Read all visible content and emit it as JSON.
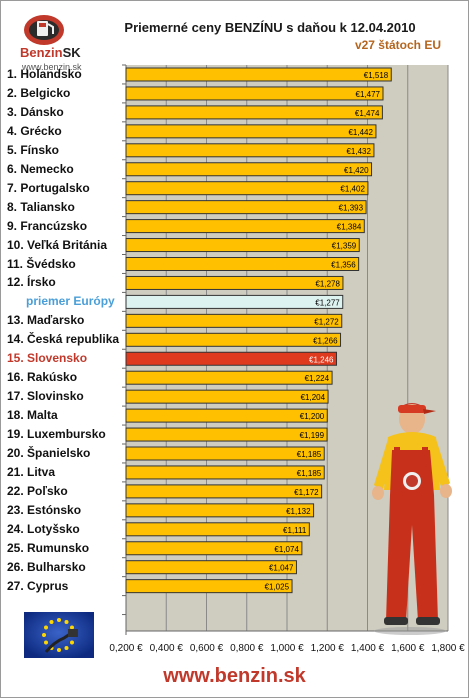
{
  "logo": {
    "brand_main": "Benzin",
    "brand_suffix": "SK",
    "url": "www.benzin.sk"
  },
  "header": {
    "title": "Priemerné ceny BENZÍNU s daňou k 12.04.2010",
    "subtitle": "v27 štátoch EU"
  },
  "footer": {
    "url": "www.benzin.sk"
  },
  "colors": {
    "bar": "#FFC000",
    "average_bar": "#DDF3F0",
    "highlight_bar": "#E03A1E",
    "plot_background": "#CFCCC0",
    "highlight_text": "#C0392B",
    "average_text": "#4A9FD8"
  },
  "chart_data": {
    "type": "bar",
    "orientation": "horizontal",
    "title": "Priemerné ceny BENZÍNU s daňou k 12.04.2010",
    "subtitle": "v27 štátoch EU",
    "xlim": [
      0.2,
      1.8
    ],
    "x_ticks": [
      "0,200 €",
      "0,400 €",
      "0,600 €",
      "0,800 €",
      "1,000 €",
      "1,200 €",
      "1,400 €",
      "1,600 €",
      "1,800 €"
    ],
    "x_tick_values": [
      0.2,
      0.4,
      0.6,
      0.8,
      1.0,
      1.2,
      1.4,
      1.6,
      1.8
    ],
    "grid": "vertical",
    "categories": [
      "1. Holandsko",
      "2. Belgicko",
      "3. Dánsko",
      "4. Grécko",
      "5. Fínsko",
      "6. Nemecko",
      "7. Portugalsko",
      "8. Taliansko",
      "9. Francúzsko",
      "10. Veľká Británia",
      "11. Švédsko",
      "12. Írsko",
      "priemer Európy",
      "13. Maďarsko",
      "14. Česká republika",
      "15. Slovensko",
      "16. Rakúsko",
      "17. Slovinsko",
      "18. Malta",
      "19. Luxembursko",
      "20. Španielsko",
      "21. Litva",
      "22. Poľsko",
      "23. Estónsko",
      "24. Lotyšsko",
      "25. Rumunsko",
      "26. Bulharsko",
      "27. Cyprus"
    ],
    "values": [
      1.518,
      1.477,
      1.474,
      1.442,
      1.432,
      1.42,
      1.402,
      1.393,
      1.384,
      1.359,
      1.356,
      1.278,
      1.277,
      1.272,
      1.266,
      1.246,
      1.224,
      1.204,
      1.2,
      1.199,
      1.185,
      1.185,
      1.172,
      1.132,
      1.111,
      1.074,
      1.047,
      1.025
    ],
    "data_labels": [
      "€1,518",
      "€1,477",
      "€1,474",
      "€1,442",
      "€1,432",
      "€1,420",
      "€1,402",
      "€1,393",
      "€1,384",
      "€1,359",
      "€1,356",
      "€1,278",
      "€1,277",
      "€1,272",
      "€1,266",
      "€1,246",
      "€1,224",
      "€1,204",
      "€1,200",
      "€1,199",
      "€1,185",
      "€1,185",
      "€1,172",
      "€1,132",
      "€1,111",
      "€1,074",
      "€1,047",
      "€1,025"
    ],
    "average_index": 12,
    "highlight_index": 15
  }
}
